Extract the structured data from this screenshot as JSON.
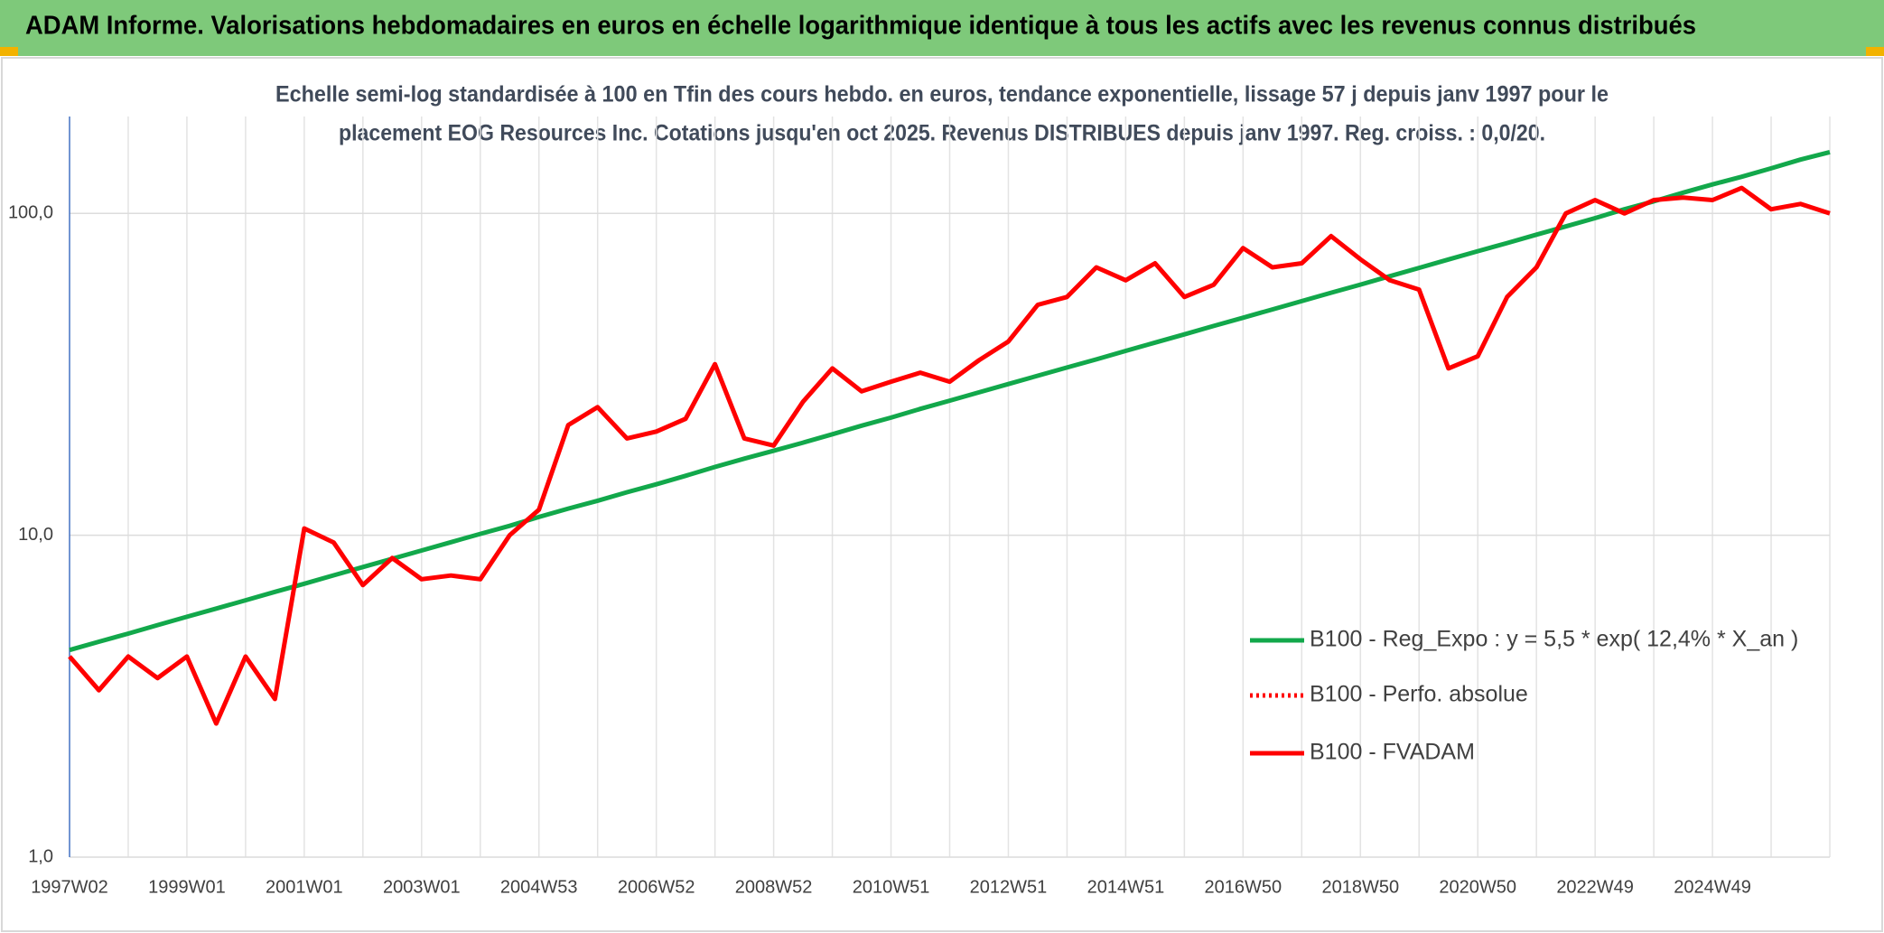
{
  "chart_data": {
    "type": "line",
    "title": "ADAM Informe. Valorisations hebdomadaires en euros en échelle logarithmique identique à tous les actifs avec les revenus connus distribués",
    "subtitle": [
      "Echelle semi-log standardisée à 100 en Tfin des cours hebdo. en euros, tendance exponentielle, lissage 57 j depuis janv 1997 pour le",
      "placement EOG Resources Inc. Cotations jusqu'en oct 2025. Revenus DISTRIBUES depuis janv 1997. Reg. croiss. : 0,0/20."
    ],
    "categories": [
      "1997W02",
      null,
      null,
      null,
      "1999W01",
      null,
      null,
      null,
      "2001W01",
      null,
      null,
      null,
      "2003W01",
      null,
      null,
      null,
      "2004W53",
      null,
      null,
      null,
      "2006W52",
      null,
      null,
      null,
      "2008W52",
      null,
      null,
      null,
      "2010W51",
      null,
      null,
      null,
      "2012W51",
      null,
      null,
      null,
      "2014W51",
      null,
      null,
      null,
      "2016W50",
      null,
      null,
      null,
      "2018W50",
      null,
      null,
      null,
      "2020W50",
      null,
      null,
      null,
      "2022W49",
      null,
      null,
      null,
      "2024W49",
      null,
      null,
      null,
      null
    ],
    "log_scale": true,
    "ylim": [
      1,
      200
    ],
    "yticks": [
      {
        "value": 1,
        "label": "1,0"
      },
      {
        "value": 10,
        "label": "10,0"
      },
      {
        "value": 100,
        "label": "100,0"
      }
    ],
    "grid": true,
    "legend": "right",
    "series": [
      {
        "name": "B100 - Reg_Expo : y = 5,5 * exp( 12,4% *  X_an )",
        "color": "#12a84b",
        "style": "solid",
        "values": [
          4.4,
          4.67,
          4.95,
          5.26,
          5.58,
          5.92,
          6.28,
          6.67,
          7.07,
          7.51,
          7.97,
          8.45,
          8.97,
          9.52,
          10.1,
          10.7,
          11.4,
          12.1,
          12.8,
          13.6,
          14.4,
          15.3,
          16.3,
          17.3,
          18.3,
          19.4,
          20.6,
          21.9,
          23.2,
          24.7,
          26.2,
          27.8,
          29.5,
          31.3,
          33.2,
          35.2,
          37.4,
          39.7,
          42.1,
          44.7,
          47.4,
          50.3,
          53.4,
          56.7,
          60.1,
          63.8,
          67.7,
          71.9,
          76.3,
          80.9,
          85.9,
          91.1,
          96.7,
          103,
          109,
          116,
          123,
          130,
          138,
          147,
          155
        ]
      },
      {
        "name": "B100 - Perfo. absolue",
        "color": "#ff0000",
        "style": "dotted"
      },
      {
        "name": "B100 - FVADAM",
        "color": "#ff0000",
        "style": "solid",
        "values": [
          4.2,
          3.3,
          4.2,
          3.6,
          4.2,
          2.6,
          4.2,
          3.1,
          10.5,
          9.5,
          7.0,
          8.5,
          7.3,
          7.5,
          7.3,
          10,
          12,
          22,
          25,
          20,
          21,
          23,
          34,
          20,
          19,
          26,
          33,
          28,
          30,
          32,
          30,
          35,
          40,
          52,
          55,
          68,
          62,
          70,
          55,
          60,
          78,
          68,
          70,
          85,
          72,
          62,
          58,
          33,
          36,
          55,
          68,
          100,
          110,
          100,
          110,
          112,
          110,
          120,
          103,
          107,
          100
        ]
      }
    ]
  }
}
